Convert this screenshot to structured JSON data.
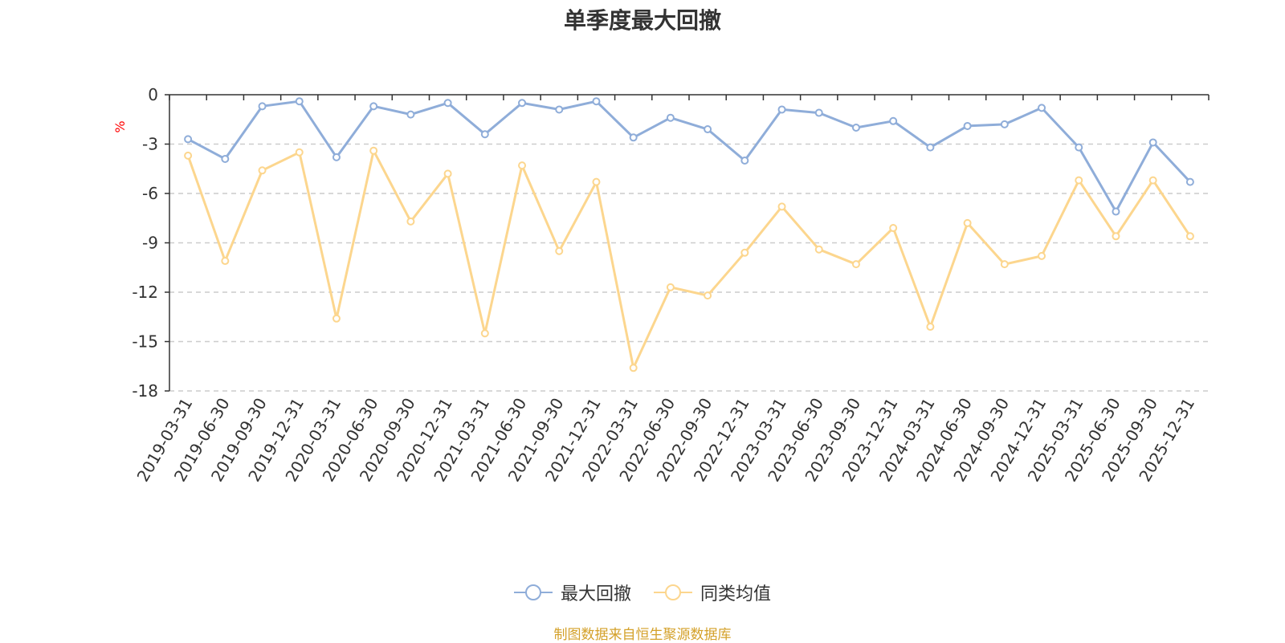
{
  "chart_data": {
    "type": "line",
    "title": "单季度最大回撤",
    "ylabel": "%",
    "xlabel": "",
    "ylim": [
      -18,
      0
    ],
    "yticks": [
      0,
      -3,
      -6,
      -9,
      -12,
      -15,
      -18
    ],
    "grid": true,
    "legend_position": "bottom",
    "categories": [
      "2019-03-31",
      "2019-06-30",
      "2019-09-30",
      "2019-12-31",
      "2020-03-31",
      "2020-06-30",
      "2020-09-30",
      "2020-12-31",
      "2021-03-31",
      "2021-06-30",
      "2021-09-30",
      "2021-12-31",
      "2022-03-31",
      "2022-06-30",
      "2022-09-30",
      "2022-12-31",
      "2023-03-31",
      "2023-06-30",
      "2023-09-30",
      "2023-12-31",
      "2024-03-31",
      "2024-06-30",
      "2024-09-30",
      "2024-12-31",
      "2025-03-31",
      "2025-06-30",
      "2025-09-30",
      "2025-12-31"
    ],
    "series": [
      {
        "name": "最大回撤",
        "color": "#8fadd9",
        "values": [
          -2.7,
          -3.9,
          -0.7,
          -0.4,
          -3.8,
          -0.7,
          -1.2,
          -0.5,
          -2.4,
          -0.5,
          -0.9,
          -0.4,
          -2.6,
          -1.4,
          -2.1,
          -4.0,
          -0.9,
          -1.1,
          -2.0,
          -1.6,
          -3.2,
          -1.9,
          -1.8,
          -0.8,
          -3.2,
          -7.1,
          -2.9,
          -5.3
        ]
      },
      {
        "name": "同类均值",
        "color": "#fcd68e",
        "values": [
          -3.7,
          -10.1,
          -4.6,
          -3.5,
          -13.6,
          -3.4,
          -7.7,
          -4.8,
          -14.5,
          -4.3,
          -9.5,
          -5.3,
          -16.6,
          -11.7,
          -12.2,
          -9.6,
          -6.8,
          -9.4,
          -10.3,
          -8.1,
          -14.1,
          -7.8,
          -10.3,
          -9.8,
          -5.2,
          -8.6,
          -5.2,
          -8.6
        ]
      }
    ]
  },
  "source_note": "制图数据来自恒生聚源数据库",
  "source_color": "#d4a12a",
  "axis_color": "#333333",
  "grid_color": "#cccccc",
  "ylabel_color": "#ff0000"
}
